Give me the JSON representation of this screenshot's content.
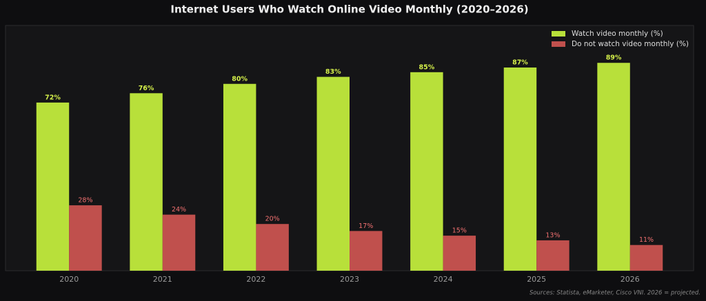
{
  "chart_data": {
    "type": "bar",
    "title": "Internet Users Who Watch Online Video Monthly (2020–2026)",
    "note": "Sources: Statista, eMarketer, Cisco VNI. 2026 = projected.",
    "categories": [
      "2020",
      "2021",
      "2022",
      "2023",
      "2024",
      "2025",
      "2026"
    ],
    "series": [
      {
        "name": "Watch video monthly (%)",
        "color": "#b8e03a",
        "label_color": "#d4ef4a",
        "values": [
          72,
          76,
          80,
          83,
          85,
          87,
          89
        ],
        "value_labels": [
          "72%",
          "76%",
          "80%",
          "83%",
          "85%",
          "87%",
          "89%"
        ]
      },
      {
        "name": "Do not watch video monthly (%)",
        "color": "#c0504d",
        "label_color": "#f07070",
        "values": [
          28,
          24,
          20,
          17,
          15,
          13,
          11
        ],
        "value_labels": [
          "28%",
          "24%",
          "20%",
          "17%",
          "15%",
          "13%",
          "11%"
        ]
      }
    ],
    "ylim": [
      0,
      105
    ],
    "legend": "upper right",
    "grid": false
  }
}
